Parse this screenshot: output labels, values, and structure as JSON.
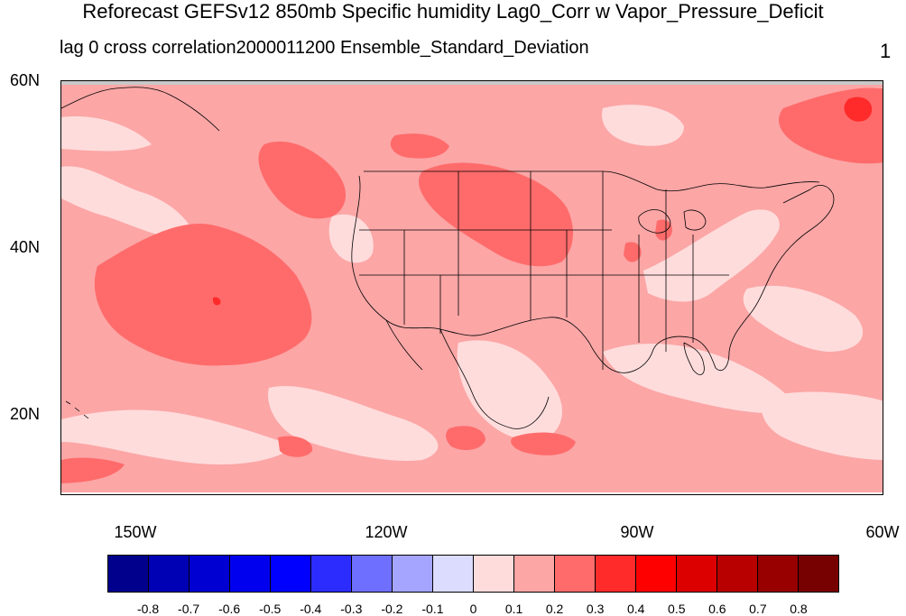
{
  "title": "Reforecast GEFSv12 850mb Specific humidity Lag0_Corr w Vapor_Pressure_Deficit",
  "subtitle": "lag 0 cross correlation2000011200 Ensemble_Standard_Deviation",
  "right_label": "1",
  "latitude_labels": [
    "60N",
    "40N",
    "20N"
  ],
  "longitude_labels": [
    "150W",
    "120W",
    "90W",
    "60W"
  ],
  "colorbar": {
    "colors": [
      "#00008c",
      "#0000b4",
      "#0000d2",
      "#0000ee",
      "#0000ff",
      "#2c2cff",
      "#6f6fff",
      "#a5a5ff",
      "#dcdcff",
      "#ffdcdc",
      "#fca6a6",
      "#ff6b6b",
      "#ff2a2a",
      "#ff0000",
      "#dc0000",
      "#b90000",
      "#980000",
      "#770000"
    ],
    "labels": [
      "-0.8",
      "-0.7",
      "-0.6",
      "-0.5",
      "-0.4",
      "-0.3",
      "-0.2",
      "-0.1",
      "0",
      "0.1",
      "0.2",
      "0.3",
      "0.4",
      "0.5",
      "0.6",
      "0.7",
      "0.8"
    ]
  },
  "map_colors": {
    "background": "#fca6a6",
    "light": "#ffdcdc",
    "medium": "#ff6b6b",
    "strong": "#ff2a2a",
    "missing": "#c8c8c8",
    "land_outline": "#000000"
  }
}
